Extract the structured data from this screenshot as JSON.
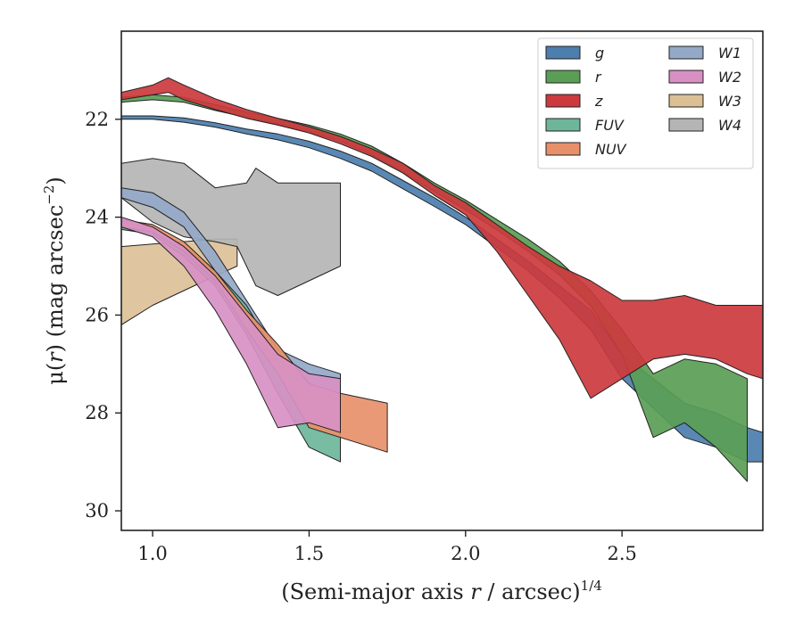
{
  "chart_data": {
    "type": "area",
    "xlabel_main": "(Semi-major axis ",
    "xlabel_var": "r",
    "xlabel_rest": " / arcsec)",
    "xlabel_exp": "1/4",
    "ylabel_main": "μ(",
    "ylabel_var": "r",
    "ylabel_rest": ") (mag arcsec",
    "ylabel_exp": "−2",
    "ylabel_close": ")",
    "xlim": [
      0.9,
      2.95
    ],
    "ylim": [
      30.4,
      20.2
    ],
    "xticks": [
      {
        "v": 1.0,
        "label": "1.0"
      },
      {
        "v": 1.5,
        "label": "1.5"
      },
      {
        "v": 2.0,
        "label": "2.0"
      },
      {
        "v": 2.5,
        "label": "2.5"
      }
    ],
    "yticks": [
      {
        "v": 22,
        "label": "22"
      },
      {
        "v": 24,
        "label": "24"
      },
      {
        "v": 26,
        "label": "26"
      },
      {
        "v": 28,
        "label": "28"
      },
      {
        "v": 30,
        "label": "30"
      }
    ],
    "legend": "top-right",
    "series": [
      {
        "name": "g",
        "color": "#4c7eae",
        "upper": [
          [
            0.9,
            21.93
          ],
          [
            1.0,
            21.93
          ],
          [
            1.1,
            21.97
          ],
          [
            1.2,
            22.07
          ],
          [
            1.3,
            22.2
          ],
          [
            1.4,
            22.3
          ],
          [
            1.5,
            22.45
          ],
          [
            1.6,
            22.65
          ],
          [
            1.7,
            22.9
          ],
          [
            1.8,
            23.25
          ],
          [
            1.9,
            23.6
          ],
          [
            2.0,
            24.0
          ],
          [
            2.1,
            24.45
          ],
          [
            2.2,
            24.9
          ],
          [
            2.3,
            25.4
          ],
          [
            2.4,
            25.9
          ],
          [
            2.5,
            26.8
          ],
          [
            2.6,
            27.3
          ],
          [
            2.7,
            27.8
          ],
          [
            2.8,
            28.0
          ],
          [
            2.9,
            28.3
          ],
          [
            2.95,
            28.4
          ]
        ],
        "lower": [
          [
            0.9,
            22.0
          ],
          [
            1.0,
            22.0
          ],
          [
            1.1,
            22.06
          ],
          [
            1.2,
            22.16
          ],
          [
            1.3,
            22.3
          ],
          [
            1.4,
            22.42
          ],
          [
            1.5,
            22.58
          ],
          [
            1.6,
            22.8
          ],
          [
            1.7,
            23.06
          ],
          [
            1.8,
            23.42
          ],
          [
            1.9,
            23.78
          ],
          [
            2.0,
            24.15
          ],
          [
            2.1,
            24.62
          ],
          [
            2.2,
            25.1
          ],
          [
            2.3,
            25.65
          ],
          [
            2.4,
            26.3
          ],
          [
            2.5,
            27.3
          ],
          [
            2.6,
            27.9
          ],
          [
            2.7,
            28.5
          ],
          [
            2.8,
            28.7
          ],
          [
            2.9,
            29.0
          ],
          [
            2.95,
            29.0
          ]
        ]
      },
      {
        "name": "r",
        "color": "#5a9e55",
        "upper": [
          [
            0.9,
            21.55
          ],
          [
            1.0,
            21.5
          ],
          [
            1.1,
            21.55
          ],
          [
            1.2,
            21.7
          ],
          [
            1.3,
            21.85
          ],
          [
            1.4,
            21.98
          ],
          [
            1.5,
            22.12
          ],
          [
            1.6,
            22.3
          ],
          [
            1.7,
            22.55
          ],
          [
            1.8,
            22.9
          ],
          [
            1.9,
            23.3
          ],
          [
            2.0,
            23.65
          ],
          [
            2.1,
            24.05
          ],
          [
            2.2,
            24.45
          ],
          [
            2.3,
            24.9
          ],
          [
            2.4,
            25.5
          ],
          [
            2.5,
            26.3
          ],
          [
            2.6,
            27.2
          ],
          [
            2.7,
            26.9
          ],
          [
            2.8,
            27.0
          ],
          [
            2.9,
            27.3
          ]
        ],
        "lower": [
          [
            0.9,
            21.65
          ],
          [
            1.0,
            21.6
          ],
          [
            1.1,
            21.65
          ],
          [
            1.2,
            21.82
          ],
          [
            1.3,
            21.96
          ],
          [
            1.4,
            22.1
          ],
          [
            1.5,
            22.26
          ],
          [
            1.6,
            22.45
          ],
          [
            1.7,
            22.72
          ],
          [
            1.8,
            23.08
          ],
          [
            1.9,
            23.48
          ],
          [
            2.0,
            23.85
          ],
          [
            2.1,
            24.26
          ],
          [
            2.2,
            24.7
          ],
          [
            2.3,
            25.18
          ],
          [
            2.4,
            25.82
          ],
          [
            2.5,
            26.8
          ],
          [
            2.6,
            28.5
          ],
          [
            2.7,
            28.2
          ],
          [
            2.8,
            28.7
          ],
          [
            2.9,
            29.4
          ]
        ]
      },
      {
        "name": "z",
        "color": "#cc3a3d",
        "upper": [
          [
            0.9,
            21.45
          ],
          [
            1.0,
            21.3
          ],
          [
            1.05,
            21.15
          ],
          [
            1.1,
            21.3
          ],
          [
            1.2,
            21.58
          ],
          [
            1.3,
            21.8
          ],
          [
            1.4,
            21.98
          ],
          [
            1.5,
            22.15
          ],
          [
            1.6,
            22.35
          ],
          [
            1.7,
            22.6
          ],
          [
            1.8,
            22.9
          ],
          [
            1.9,
            23.35
          ],
          [
            2.0,
            23.7
          ],
          [
            2.1,
            24.15
          ],
          [
            2.2,
            24.6
          ],
          [
            2.3,
            25.0
          ],
          [
            2.4,
            25.3
          ],
          [
            2.5,
            25.7
          ],
          [
            2.6,
            25.7
          ],
          [
            2.7,
            25.6
          ],
          [
            2.8,
            25.8
          ],
          [
            2.9,
            25.8
          ],
          [
            2.95,
            25.8
          ]
        ],
        "lower": [
          [
            0.9,
            21.6
          ],
          [
            1.0,
            21.5
          ],
          [
            1.05,
            21.45
          ],
          [
            1.1,
            21.6
          ],
          [
            1.2,
            21.8
          ],
          [
            1.3,
            21.98
          ],
          [
            1.4,
            22.12
          ],
          [
            1.5,
            22.28
          ],
          [
            1.6,
            22.5
          ],
          [
            1.7,
            22.76
          ],
          [
            1.8,
            23.1
          ],
          [
            1.9,
            23.55
          ],
          [
            2.0,
            23.95
          ],
          [
            2.1,
            24.7
          ],
          [
            2.2,
            25.6
          ],
          [
            2.3,
            26.5
          ],
          [
            2.4,
            27.7
          ],
          [
            2.5,
            27.3
          ],
          [
            2.6,
            26.9
          ],
          [
            2.7,
            26.8
          ],
          [
            2.8,
            26.9
          ],
          [
            2.9,
            27.2
          ],
          [
            2.95,
            27.3
          ]
        ]
      },
      {
        "name": "FUV",
        "color": "#6db69a",
        "upper": [
          [
            0.9,
            24.1
          ],
          [
            1.0,
            24.2
          ],
          [
            1.1,
            24.6
          ],
          [
            1.2,
            25.1
          ],
          [
            1.3,
            25.8
          ],
          [
            1.4,
            26.9
          ],
          [
            1.5,
            27.4
          ],
          [
            1.6,
            27.8
          ]
        ],
        "lower": [
          [
            0.9,
            24.25
          ],
          [
            1.0,
            24.35
          ],
          [
            1.1,
            24.8
          ],
          [
            1.2,
            25.4
          ],
          [
            1.3,
            26.4
          ],
          [
            1.4,
            27.6
          ],
          [
            1.5,
            28.7
          ],
          [
            1.6,
            29.0
          ]
        ]
      },
      {
        "name": "NUV",
        "color": "#e8906a",
        "upper": [
          [
            0.9,
            24.05
          ],
          [
            1.0,
            24.15
          ],
          [
            1.1,
            24.5
          ],
          [
            1.2,
            25.1
          ],
          [
            1.3,
            25.9
          ],
          [
            1.4,
            26.6
          ],
          [
            1.5,
            27.4
          ],
          [
            1.6,
            27.6
          ],
          [
            1.75,
            27.8
          ]
        ],
        "lower": [
          [
            0.9,
            24.2
          ],
          [
            1.0,
            24.3
          ],
          [
            1.1,
            24.7
          ],
          [
            1.2,
            25.3
          ],
          [
            1.3,
            26.3
          ],
          [
            1.4,
            27.2
          ],
          [
            1.5,
            28.3
          ],
          [
            1.6,
            28.5
          ],
          [
            1.75,
            28.8
          ]
        ]
      },
      {
        "name": "W1",
        "color": "#94a8c8",
        "upper": [
          [
            0.9,
            23.4
          ],
          [
            1.0,
            23.5
          ],
          [
            1.1,
            23.9
          ],
          [
            1.2,
            24.7
          ],
          [
            1.3,
            25.7
          ],
          [
            1.4,
            26.7
          ],
          [
            1.5,
            27.0
          ],
          [
            1.6,
            27.2
          ]
        ],
        "lower": [
          [
            0.9,
            23.6
          ],
          [
            1.0,
            23.8
          ],
          [
            1.1,
            24.2
          ],
          [
            1.2,
            25.1
          ],
          [
            1.3,
            26.1
          ],
          [
            1.4,
            27.1
          ],
          [
            1.5,
            27.4
          ],
          [
            1.6,
            27.6
          ]
        ]
      },
      {
        "name": "W2",
        "color": "#d890c4",
        "upper": [
          [
            0.9,
            24.0
          ],
          [
            1.0,
            24.2
          ],
          [
            1.1,
            24.6
          ],
          [
            1.2,
            25.2
          ],
          [
            1.3,
            26.0
          ],
          [
            1.4,
            26.8
          ],
          [
            1.5,
            27.2
          ],
          [
            1.6,
            27.3
          ]
        ],
        "lower": [
          [
            0.9,
            24.2
          ],
          [
            1.0,
            24.4
          ],
          [
            1.1,
            25.0
          ],
          [
            1.2,
            25.9
          ],
          [
            1.3,
            27.0
          ],
          [
            1.4,
            28.3
          ],
          [
            1.5,
            28.2
          ],
          [
            1.6,
            28.4
          ]
        ]
      },
      {
        "name": "W3",
        "color": "#dbc096",
        "upper": [
          [
            0.9,
            24.6
          ],
          [
            1.0,
            24.55
          ],
          [
            1.1,
            24.5
          ],
          [
            1.2,
            24.45
          ],
          [
            1.27,
            24.45
          ]
        ],
        "lower": [
          [
            0.9,
            26.2
          ],
          [
            1.0,
            25.8
          ],
          [
            1.1,
            25.5
          ],
          [
            1.2,
            25.2
          ],
          [
            1.27,
            25.0
          ]
        ]
      },
      {
        "name": "W4",
        "color": "#b5b5b5",
        "upper": [
          [
            0.9,
            22.9
          ],
          [
            1.0,
            22.8
          ],
          [
            1.1,
            22.9
          ],
          [
            1.2,
            23.4
          ],
          [
            1.3,
            23.3
          ],
          [
            1.33,
            23.0
          ],
          [
            1.4,
            23.3
          ],
          [
            1.5,
            23.3
          ],
          [
            1.6,
            23.3
          ]
        ],
        "lower": [
          [
            0.9,
            23.6
          ],
          [
            1.0,
            24.1
          ],
          [
            1.1,
            24.4
          ],
          [
            1.2,
            24.5
          ],
          [
            1.27,
            24.6
          ],
          [
            1.33,
            25.4
          ],
          [
            1.4,
            25.6
          ],
          [
            1.5,
            25.3
          ],
          [
            1.6,
            25.0
          ]
        ]
      }
    ]
  }
}
